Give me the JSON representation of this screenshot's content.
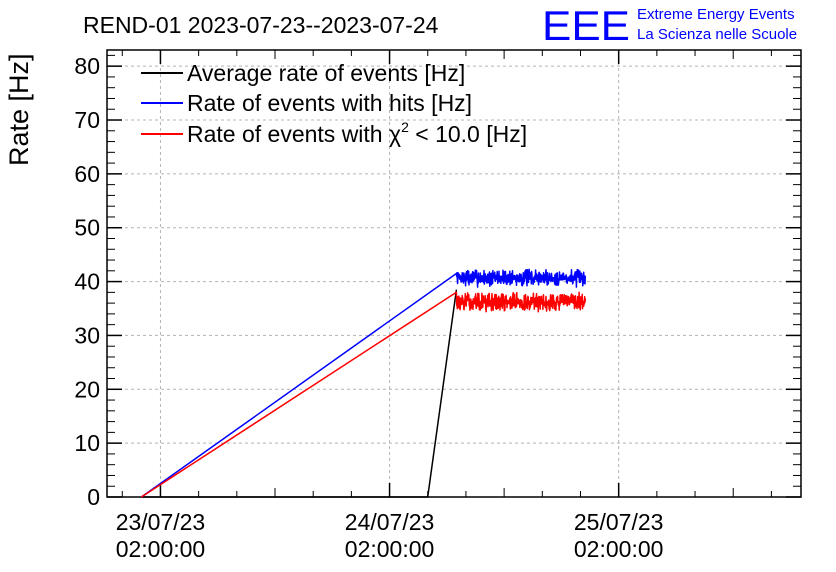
{
  "chart_data": {
    "type": "line",
    "title": "REND-01 2023-07-23--2023-07-24",
    "ylabel": "Rate [Hz]",
    "xlabel": "",
    "ylim": [
      0,
      83
    ],
    "xlim_hours": [
      -5.6,
      67.1
    ],
    "grid": true,
    "legend_position": "top-left",
    "brand": {
      "logo": "EEE",
      "line1": "Extreme Energy Events",
      "line2": "La Scienza nelle Scuole",
      "color": "#0000ff"
    },
    "y_ticks": [
      {
        "value": 0,
        "label": "0"
      },
      {
        "value": 10,
        "label": "10"
      },
      {
        "value": 20,
        "label": "20"
      },
      {
        "value": 30,
        "label": "30"
      },
      {
        "value": 40,
        "label": "40"
      },
      {
        "value": 50,
        "label": "50"
      },
      {
        "value": 60,
        "label": "60"
      },
      {
        "value": 70,
        "label": "70"
      },
      {
        "value": 80,
        "label": "80"
      }
    ],
    "x_ticks": [
      {
        "hours": 0,
        "date": "23/07/23",
        "time": "02:00:00"
      },
      {
        "hours": 24,
        "date": "24/07/23",
        "time": "02:00:00"
      },
      {
        "hours": 48,
        "date": "25/07/23",
        "time": "02:00:00"
      }
    ],
    "series": [
      {
        "name": "Average rate of events [Hz]",
        "color": "#000000",
        "points": [
          [
            -2.0,
            0
          ],
          [
            28.0,
            0
          ],
          [
            31.0,
            38.5
          ]
        ],
        "noise": null
      },
      {
        "name": "Rate of events with hits [Hz]",
        "color": "#0000ff",
        "points": [
          [
            -2.0,
            0
          ],
          [
            31.0,
            41.5
          ]
        ],
        "noise": {
          "start": 31.0,
          "end": 44.5,
          "mean": 40.7,
          "amplitude": 1.8,
          "seed": 7
        }
      },
      {
        "name": "Rate of events with χ² < 10.0 [Hz]",
        "color": "#ff0000",
        "points": [
          [
            -2.0,
            0
          ],
          [
            31.0,
            38.0
          ]
        ],
        "noise": {
          "start": 31.0,
          "end": 44.5,
          "mean": 36.2,
          "amplitude": 2.0,
          "seed": 13
        }
      }
    ],
    "legend_labels": {
      "avg": "Average rate of events [Hz]",
      "hits": "Rate of events with hits [Hz]",
      "chi_prefix": "Rate of events with χ",
      "chi_sup": "2",
      "chi_suffix": " < 10.0 [Hz]"
    }
  }
}
